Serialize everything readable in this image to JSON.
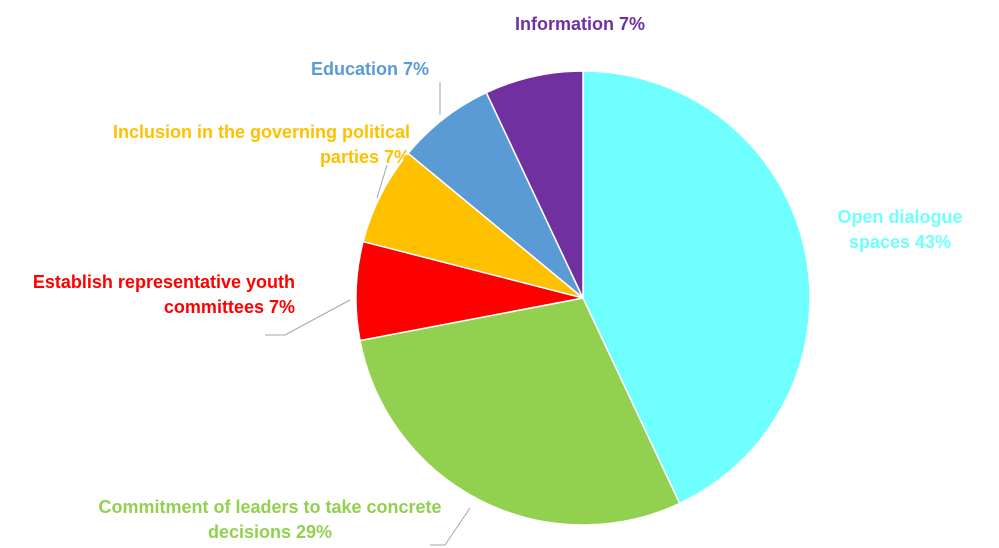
{
  "chart_data": {
    "type": "pie",
    "categories": [
      "Open dialogue spaces",
      "Commitment of leaders to take concrete decisions",
      "Establish representative youth committees",
      "Inclusion in the governing political parties",
      "Education",
      "Information"
    ],
    "values": [
      43,
      29,
      7,
      7,
      7,
      7
    ],
    "value_labels": [
      "43%",
      "29%",
      "7%",
      "7%",
      "7%",
      "7%"
    ],
    "colors": [
      "#70ffff",
      "#92d050",
      "#ff0000",
      "#ffc000",
      "#5b9bd5",
      "#7030a0"
    ]
  }
}
